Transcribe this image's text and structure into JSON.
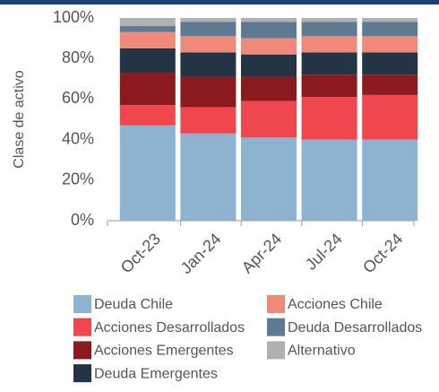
{
  "chart_data": {
    "type": "stacked_bar",
    "ylabel": "Clase de activo",
    "categories": [
      "Oct-23",
      "Jan-24",
      "Apr-24",
      "Jul-24",
      "Oct-24"
    ],
    "series": [
      {
        "name": "Deuda Chile",
        "color": "#8db3d0",
        "values": [
          47,
          43,
          41,
          40,
          40
        ]
      },
      {
        "name": "Acciones Desarrollados",
        "color": "#f0474e",
        "values": [
          10,
          13,
          18,
          21,
          22
        ]
      },
      {
        "name": "Acciones Emergentes",
        "color": "#8b1a1f",
        "values": [
          16,
          15,
          12,
          11,
          10
        ]
      },
      {
        "name": "Deuda Emergentes",
        "color": "#253444",
        "values": [
          12,
          12,
          11,
          11,
          11
        ]
      },
      {
        "name": "Acciones Chile",
        "color": "#ef8a7a",
        "values": [
          8,
          8,
          8,
          8,
          8
        ]
      },
      {
        "name": "Deuda Desarrollados",
        "color": "#5e7a93",
        "values": [
          3,
          7,
          8,
          7,
          7
        ]
      },
      {
        "name": "Alternativo",
        "color": "#b0b0b0",
        "values": [
          4,
          2,
          2,
          2,
          2
        ]
      }
    ],
    "ylim": [
      0,
      100
    ],
    "yticks": [
      {
        "value": 0,
        "label": "0%"
      },
      {
        "value": 20,
        "label": "20%"
      },
      {
        "value": 40,
        "label": "40%"
      },
      {
        "value": 60,
        "label": "60%"
      },
      {
        "value": 80,
        "label": "80%"
      },
      {
        "value": 100,
        "label": "100%"
      }
    ]
  }
}
